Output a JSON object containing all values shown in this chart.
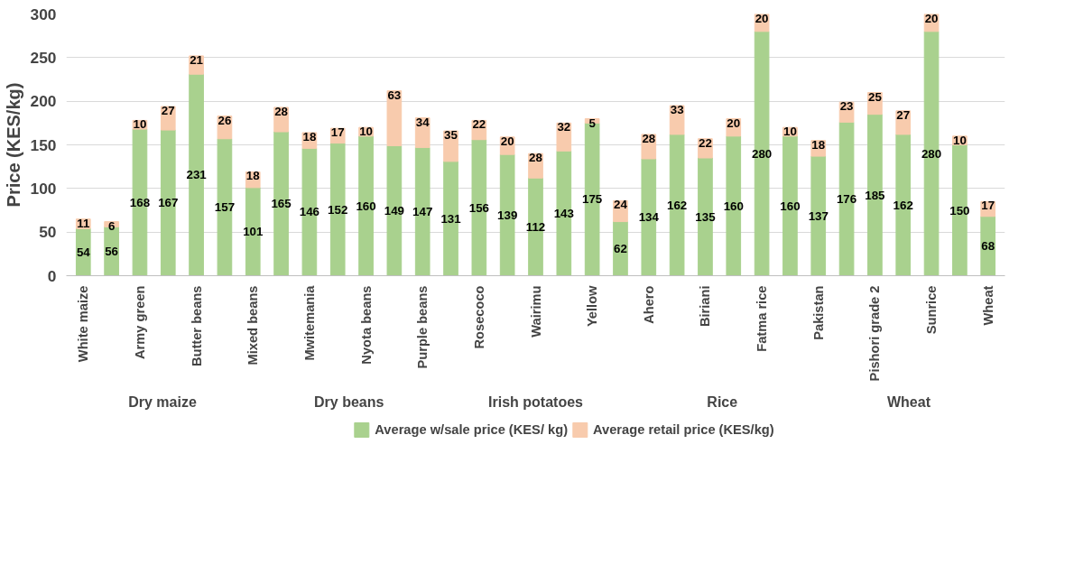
{
  "chart_data": {
    "type": "bar",
    "stacked": true,
    "ylabel": "Price (KES/kg)",
    "categories": [
      "White maize",
      null,
      "Army green",
      null,
      "Butter beans",
      null,
      "Mixed beans",
      null,
      "Mwitemania",
      null,
      "Nyota beans",
      null,
      "Purple beans",
      null,
      "Rosecoco",
      null,
      "Wairimu",
      null,
      "Yellow",
      null,
      "Ahero",
      null,
      "Biriani",
      null,
      "Fatma rice",
      null,
      "Pakistan",
      null,
      "Pishori grade 2",
      null,
      "Sunrice",
      null,
      "Wheat"
    ],
    "series": [
      {
        "name": "Average w/sale price (KES/ kg)",
        "color": "#a9d18e",
        "values": [
          54,
          56,
          168,
          167,
          231,
          157,
          101,
          165,
          146,
          152,
          160,
          149,
          147,
          131,
          156,
          139,
          112,
          143,
          175,
          62,
          134,
          162,
          135,
          160,
          280,
          160,
          137,
          176,
          185,
          162,
          280,
          150,
          68
        ]
      },
      {
        "name": "Average retail price (KES/kg)",
        "color": "#f8cbad",
        "values": [
          11,
          6,
          10,
          27,
          21,
          26,
          18,
          28,
          18,
          17,
          10,
          63,
          34,
          35,
          22,
          20,
          28,
          32,
          5,
          24,
          28,
          33,
          22,
          20,
          20,
          10,
          18,
          23,
          25,
          27,
          20,
          10,
          17
        ]
      }
    ],
    "ylim": [
      0,
      300
    ],
    "yticks": [
      0,
      50,
      100,
      150,
      200,
      250,
      300
    ],
    "grid": "y",
    "legend": "bottom",
    "data_labels": true,
    "annotations": [
      "Dry maize",
      "Dry beans",
      "Irish potatoes",
      "Rice",
      "Wheat"
    ]
  }
}
